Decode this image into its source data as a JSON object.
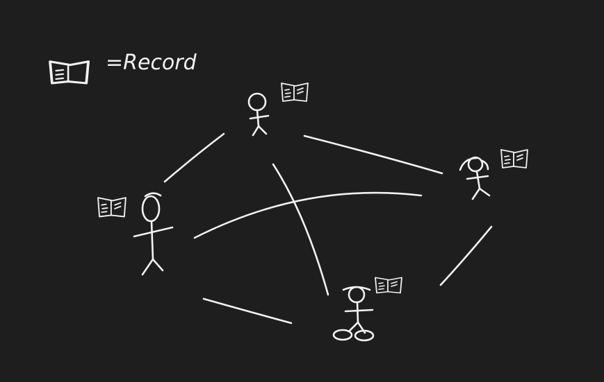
{
  "legend": {
    "icon": "record-icon",
    "label": "=Record"
  },
  "nodes": [
    {
      "id": "person-top",
      "icon": "person-icon",
      "has_record": true
    },
    {
      "id": "person-left",
      "icon": "person-icon",
      "has_record": true
    },
    {
      "id": "person-right",
      "icon": "person-icon",
      "has_record": true
    },
    {
      "id": "person-bottom",
      "icon": "person-icon",
      "has_record": true
    }
  ],
  "connections": [
    {
      "from": "person-top",
      "to": "person-left"
    },
    {
      "from": "person-top",
      "to": "person-right"
    },
    {
      "from": "person-top",
      "to": "person-bottom"
    },
    {
      "from": "person-left",
      "to": "person-right"
    },
    {
      "from": "person-left",
      "to": "person-bottom"
    },
    {
      "from": "person-right",
      "to": "person-bottom"
    }
  ],
  "colors": {
    "background": "#1e1e1e",
    "ink": "#f2f2f2"
  }
}
